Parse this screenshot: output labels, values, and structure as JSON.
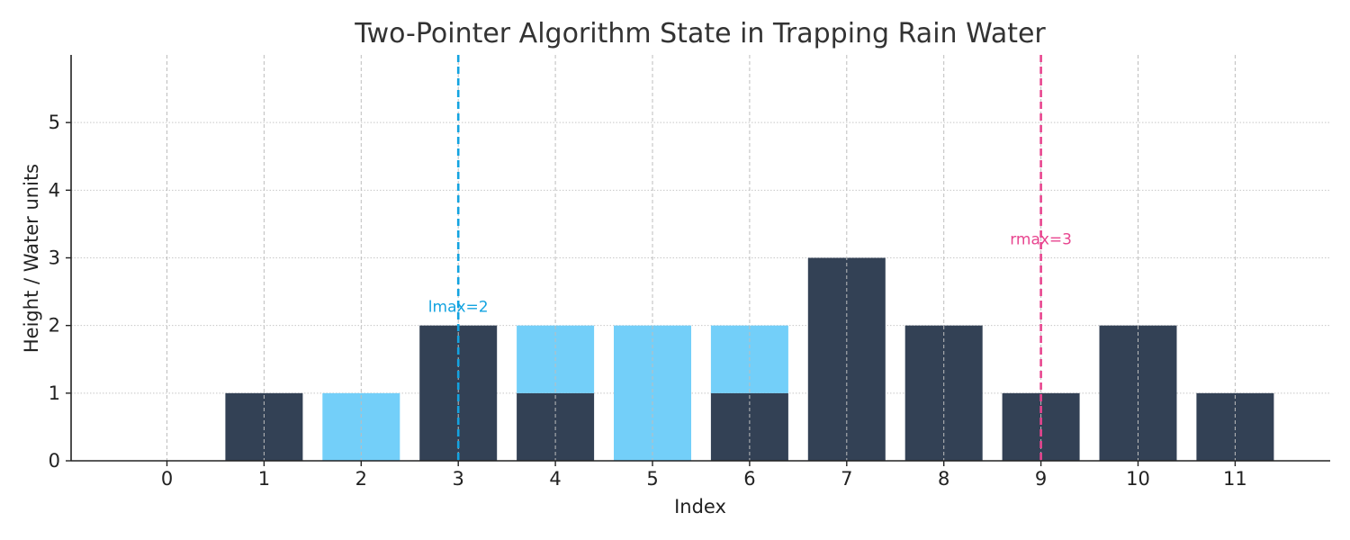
{
  "chart_data": {
    "type": "bar",
    "title": "Two-Pointer Algorithm State in Trapping Rain Water",
    "xlabel": "Index",
    "ylabel": "Height / Water units",
    "categories": [
      "0",
      "1",
      "2",
      "3",
      "4",
      "5",
      "6",
      "7",
      "8",
      "9",
      "10",
      "11"
    ],
    "series": [
      {
        "role": "elevation",
        "color": "#334155",
        "values": [
          0,
          1,
          0,
          2,
          1,
          0,
          1,
          3,
          2,
          1,
          2,
          1
        ]
      },
      {
        "role": "trapped-water",
        "color": "#73CFF9",
        "values": [
          0,
          0,
          1,
          0,
          1,
          2,
          1,
          0,
          0,
          0,
          0,
          0
        ]
      }
    ],
    "ylim": [
      0,
      6
    ],
    "yticks": [
      0,
      1,
      2,
      3,
      4,
      5
    ],
    "grid": true,
    "markers": [
      {
        "index": 3,
        "label": "lmax=2",
        "color": "#13A3E0",
        "label_y": 2.2
      },
      {
        "index": 9,
        "label": "rmax=3",
        "color": "#E8458F",
        "label_y": 3.2
      }
    ]
  }
}
